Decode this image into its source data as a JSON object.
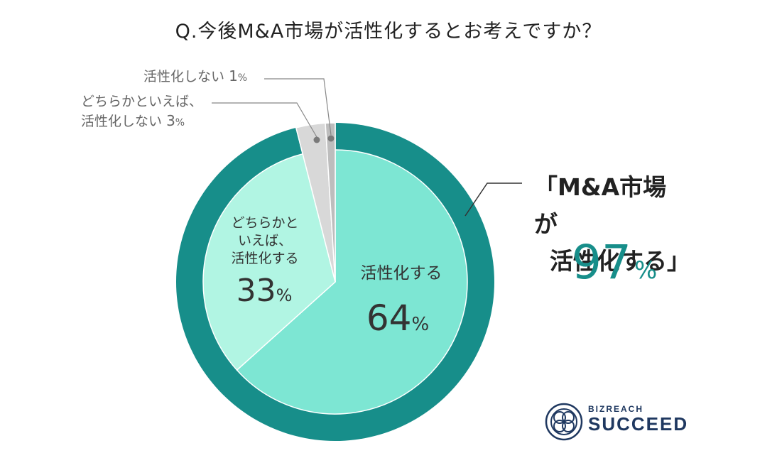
{
  "title": "Q.今後M&A市場が活性化するとお考えですか？",
  "chart_data": {
    "type": "pie",
    "slices": [
      {
        "label": "活性化する",
        "value": 64,
        "color": "#7de6d3",
        "label_color": "#333333"
      },
      {
        "label": "どちらかといえば、活性化する",
        "value": 33,
        "color": "#b1f5e3",
        "label_color": "#333333"
      },
      {
        "label": "どちらかといえば、活性化しない",
        "value": 3,
        "color": "#d8d8d8",
        "label_color": "#666666"
      },
      {
        "label": "活性化しない",
        "value": 1,
        "color": "#bdbdbd",
        "label_color": "#666666"
      }
    ],
    "outer_ring": {
      "label": "「M&A市場が活性化する」",
      "value": 97,
      "color": "#178e8a"
    }
  },
  "labels": {
    "activate": {
      "text": "活性化する",
      "pct": "64",
      "unit": "%"
    },
    "somewhat_activate": {
      "line1": "どちらかと",
      "line2": "いえば、",
      "line3": "活性化する",
      "pct": "33",
      "unit": "%"
    },
    "somewhat_not": {
      "line1": "どちらかといえば、",
      "line2": "活性化しない",
      "pct": "3",
      "unit": "%"
    },
    "not_activate": {
      "text": "活性化しない",
      "pct": "1",
      "unit": "%"
    }
  },
  "callout": {
    "line1": "「M&A市場が",
    "line2": "活性化する」",
    "pct": "97",
    "unit": "%"
  },
  "logo": {
    "small": "BIZREACH",
    "large": "SUCCEED"
  }
}
